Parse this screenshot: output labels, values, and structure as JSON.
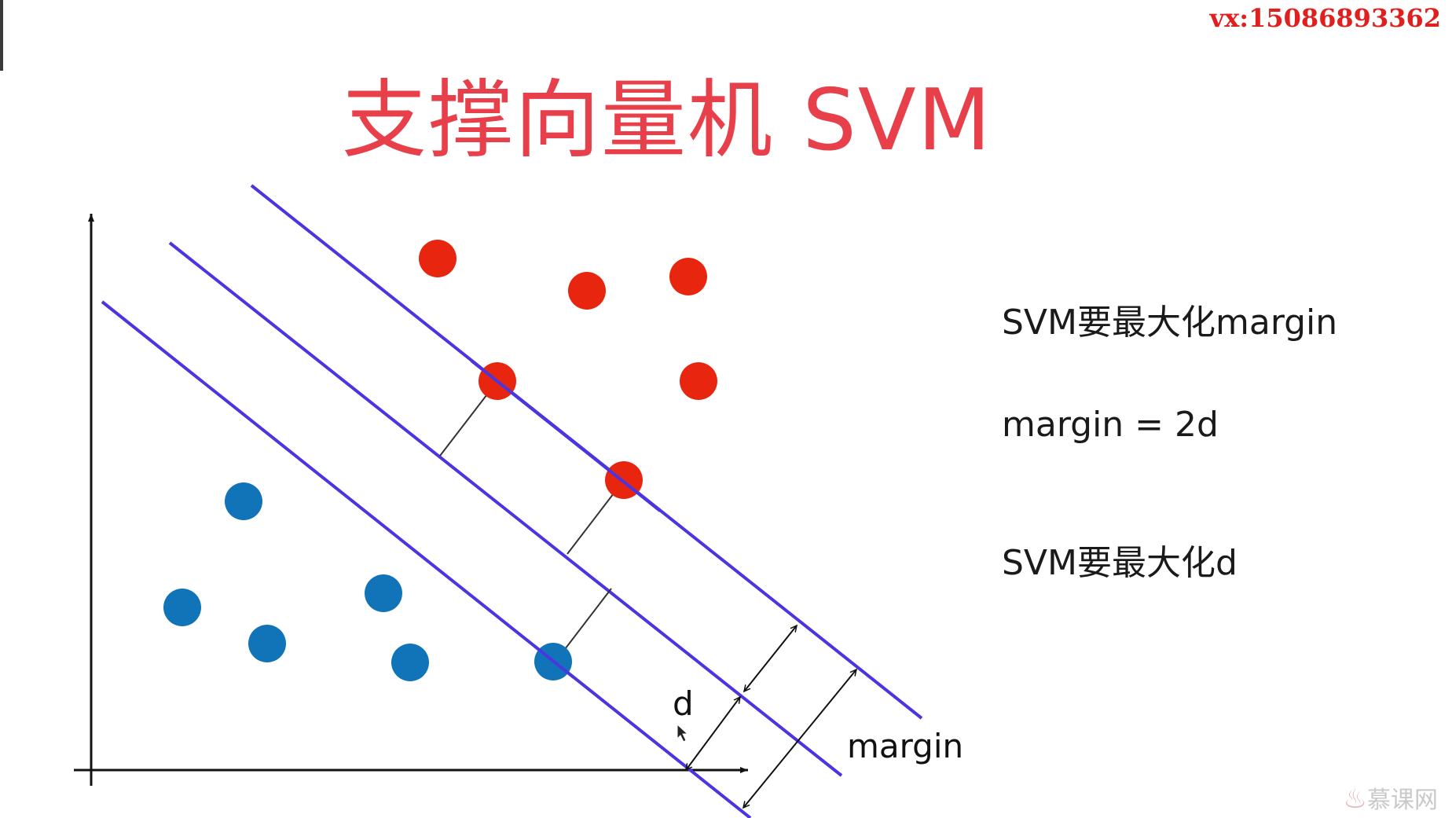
{
  "watermark": "vx:15086893362",
  "title": "支撑向量机 SVM",
  "notes": [
    "SVM要最大化margin",
    "margin = 2d",
    "SVM要最大化d"
  ],
  "diagram": {
    "label_d": "d",
    "label_margin": "margin",
    "colors": {
      "red_class": "#e8250e",
      "blue_class": "#1173b8",
      "boundary_lines": "#4a35e0",
      "axis": "#111111",
      "title": "#e8404a"
    }
  },
  "logo": "慕课网"
}
